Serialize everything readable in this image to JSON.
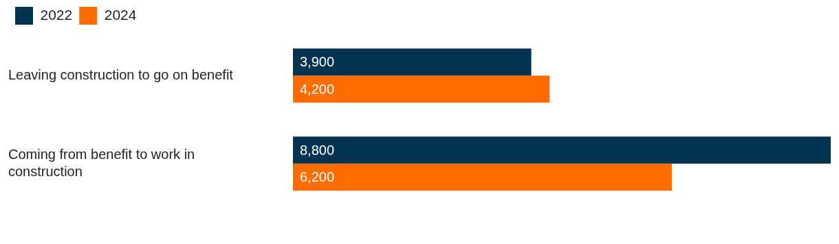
{
  "chart_data": {
    "type": "bar",
    "orientation": "horizontal",
    "categories": [
      "Leaving construction to go on benefit",
      "Coming from benefit to work in construction"
    ],
    "series": [
      {
        "name": "2022",
        "color": "#023452",
        "values": [
          3900,
          8800
        ],
        "value_labels": [
          "3,900",
          "8,800"
        ]
      },
      {
        "name": "2024",
        "color": "#ff6c00",
        "values": [
          4200,
          6200
        ],
        "value_labels": [
          "4,200",
          "6,200"
        ]
      }
    ],
    "legend": "top left"
  }
}
